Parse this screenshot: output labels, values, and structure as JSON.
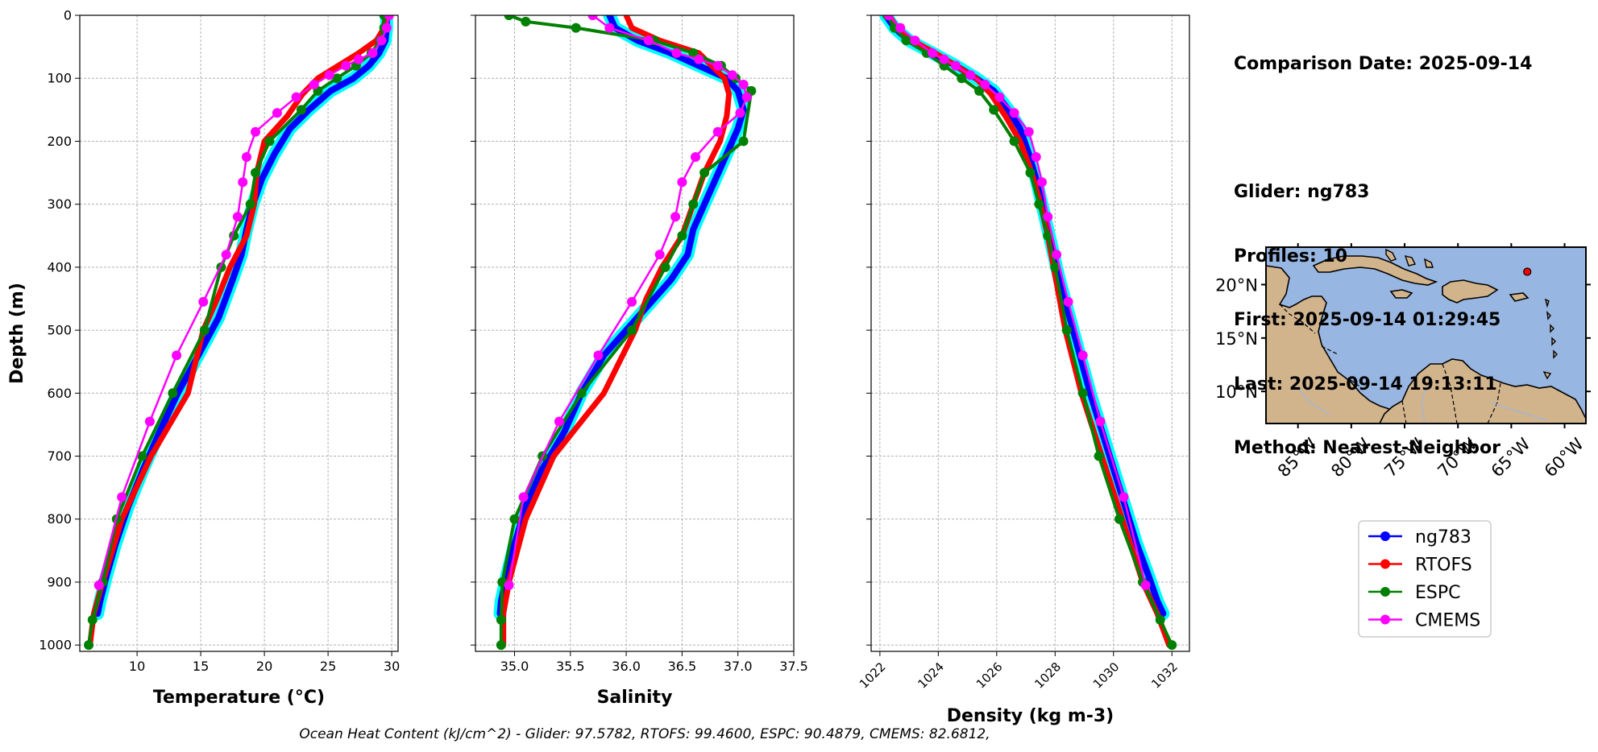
{
  "info": {
    "comparison_date": "Comparison Date: 2025-09-14",
    "glider": "Glider: ng783",
    "profiles": "Profiles: 10",
    "first": "First: 2025-09-14 01:29:45",
    "last": "Last: 2025-09-14 19:13:11",
    "method": "Method: Nearest-Neighbor"
  },
  "footer": "Ocean Heat Content (kJ/cm^2) - Glider: 97.5782,  RTOFS: 99.4600,  ESPC: 90.4879,  CMEMS: 82.6812,",
  "colors": {
    "glider": "#0000ff",
    "glider_spread": "#00ffff",
    "rtofs": "#ff0000",
    "espc": "#008000",
    "cmems": "#ff00ff",
    "ocean": "#97b6e1",
    "land": "#d2b48c"
  },
  "chart_data": [
    {
      "type": "line",
      "xlabel": "Temperature (°C)",
      "ylabel": "Depth (m)",
      "xlim": [
        5.5,
        30.5
      ],
      "ylim": [
        1010,
        0
      ],
      "xticks": [
        10,
        15,
        20,
        25,
        30
      ],
      "xtick_labels": [
        "10",
        "15",
        "20",
        "25",
        "30"
      ],
      "yticks": [
        0,
        100,
        200,
        300,
        400,
        500,
        600,
        700,
        800,
        900,
        1000
      ],
      "ytick_labels": [
        "0",
        "100",
        "200",
        "300",
        "400",
        "500",
        "600",
        "700",
        "800",
        "900",
        "1000"
      ],
      "grid": true,
      "series": [
        {
          "name": "ng783",
          "x": [
            29.6,
            29.6,
            29.5,
            29.0,
            28.2,
            27.0,
            25.2,
            23.5,
            22.0,
            20.8,
            19.8,
            19.1,
            18.6,
            18.2,
            17.5,
            16.4,
            14.8,
            13.2,
            11.8,
            10.5,
            9.3,
            8.3,
            7.6,
            7.1,
            6.9
          ],
          "y": [
            0,
            20,
            40,
            60,
            80,
            100,
            120,
            150,
            180,
            220,
            260,
            300,
            340,
            380,
            420,
            480,
            540,
            600,
            660,
            720,
            780,
            840,
            890,
            930,
            950
          ]
        },
        {
          "name": "RTOFS",
          "x": [
            29.5,
            29.4,
            28.8,
            27.4,
            24.2,
            23.0,
            21.8,
            20.0,
            19.4,
            19.2,
            18.6,
            17.3,
            16.3,
            15.2,
            14.0,
            11.1,
            8.8,
            7.3,
            6.6,
            6.3
          ],
          "y": [
            0,
            20,
            40,
            60,
            100,
            125,
            160,
            200,
            250,
            300,
            350,
            400,
            450,
            500,
            600,
            700,
            800,
            900,
            950,
            1000
          ]
        },
        {
          "name": "ESPC",
          "x": [
            29.4,
            29.4,
            29.1,
            28.4,
            27.2,
            25.7,
            24.2,
            22.9,
            20.4,
            19.3,
            18.9,
            17.6,
            16.6,
            15.3,
            12.8,
            10.4,
            8.4,
            7.3,
            6.5,
            6.2
          ],
          "y": [
            0,
            20,
            40,
            60,
            80,
            100,
            120,
            150,
            200,
            250,
            300,
            350,
            400,
            500,
            600,
            700,
            800,
            900,
            960,
            1000
          ]
        },
        {
          "name": "CMEMS",
          "x": [
            29.8,
            29.6,
            29.2,
            28.5,
            27.4,
            26.4,
            25.1,
            23.9,
            22.5,
            21.0,
            19.3,
            18.6,
            18.3,
            17.9,
            17.0,
            15.2,
            13.1,
            11.0,
            8.8,
            7.0
          ],
          "y": [
            0,
            20,
            40,
            60,
            70,
            80,
            95,
            110,
            130,
            155,
            185,
            225,
            265,
            320,
            380,
            455,
            540,
            645,
            765,
            905
          ]
        }
      ]
    },
    {
      "type": "line",
      "xlabel": "Salinity",
      "ylim": [
        1010,
        0
      ],
      "xlim": [
        34.65,
        37.5
      ],
      "xticks": [
        35.0,
        35.5,
        36.0,
        36.5,
        37.0,
        37.5
      ],
      "xtick_labels": [
        "35.0",
        "35.5",
        "36.0",
        "36.5",
        "37.0",
        "37.5"
      ],
      "grid": true,
      "series": [
        {
          "name": "ng783",
          "x": [
            35.85,
            35.9,
            36.1,
            36.4,
            36.65,
            36.9,
            37.0,
            37.05,
            37.0,
            36.9,
            36.8,
            36.7,
            36.6,
            36.55,
            36.4,
            36.1,
            35.8,
            35.6,
            35.45,
            35.25,
            35.1,
            35.0,
            34.93,
            34.88,
            34.87
          ],
          "y": [
            0,
            20,
            40,
            60,
            80,
            100,
            120,
            150,
            180,
            220,
            260,
            300,
            340,
            380,
            420,
            480,
            540,
            600,
            660,
            720,
            780,
            840,
            890,
            930,
            950
          ]
        },
        {
          "name": "RTOFS",
          "x": [
            36.0,
            36.05,
            36.3,
            36.65,
            36.88,
            36.92,
            36.9,
            36.84,
            36.7,
            36.6,
            36.5,
            36.32,
            36.18,
            36.08,
            35.8,
            35.35,
            35.1,
            34.95,
            34.9,
            34.9
          ],
          "y": [
            0,
            20,
            40,
            60,
            100,
            125,
            160,
            200,
            250,
            300,
            350,
            400,
            450,
            500,
            600,
            700,
            800,
            900,
            950,
            1000
          ]
        },
        {
          "name": "ESPC",
          "x": [
            34.95,
            35.1,
            35.55,
            36.25,
            36.6,
            36.85,
            36.98,
            37.12,
            37.05,
            36.7,
            36.6,
            36.5,
            36.35,
            36.05,
            35.6,
            35.25,
            35.0,
            34.89,
            34.88,
            34.88
          ],
          "y": [
            0,
            10,
            20,
            40,
            60,
            80,
            100,
            120,
            200,
            250,
            300,
            350,
            400,
            500,
            600,
            700,
            800,
            900,
            960,
            1000
          ]
        },
        {
          "name": "CMEMS",
          "x": [
            35.7,
            35.85,
            36.2,
            36.45,
            36.65,
            36.82,
            36.95,
            37.05,
            37.08,
            37.02,
            36.82,
            36.62,
            36.5,
            36.44,
            36.3,
            36.05,
            35.75,
            35.4,
            35.08,
            34.95
          ],
          "y": [
            0,
            20,
            40,
            60,
            70,
            80,
            95,
            110,
            130,
            155,
            185,
            225,
            265,
            320,
            380,
            455,
            540,
            645,
            765,
            905
          ]
        }
      ]
    },
    {
      "type": "line",
      "xlabel": "Density (kg m-3)",
      "ylim": [
        1010,
        0
      ],
      "xlim": [
        1021.7,
        1032.6
      ],
      "xticks": [
        1022,
        1024,
        1026,
        1028,
        1030,
        1032
      ],
      "xtick_labels": [
        "1022",
        "1024",
        "1026",
        "1028",
        "1030",
        "1032"
      ],
      "grid": true,
      "series": [
        {
          "name": "ng783",
          "x": [
            1022.2,
            1022.5,
            1023.0,
            1023.8,
            1024.6,
            1025.3,
            1025.9,
            1026.4,
            1026.8,
            1027.1,
            1027.35,
            1027.55,
            1027.75,
            1027.95,
            1028.15,
            1028.5,
            1028.85,
            1029.2,
            1029.6,
            1030.0,
            1030.4,
            1030.8,
            1031.2,
            1031.5,
            1031.7
          ],
          "y": [
            0,
            20,
            40,
            60,
            80,
            100,
            120,
            150,
            180,
            220,
            260,
            300,
            340,
            380,
            420,
            480,
            540,
            600,
            660,
            720,
            780,
            840,
            890,
            930,
            950
          ]
        },
        {
          "name": "RTOFS",
          "x": [
            1022.3,
            1022.6,
            1023.1,
            1023.9,
            1025.3,
            1025.8,
            1026.3,
            1026.8,
            1027.2,
            1027.5,
            1027.75,
            1027.95,
            1028.15,
            1028.35,
            1028.9,
            1029.6,
            1030.3,
            1031.0,
            1031.5,
            1031.9
          ],
          "y": [
            0,
            20,
            40,
            60,
            100,
            125,
            160,
            200,
            250,
            300,
            350,
            400,
            450,
            500,
            600,
            700,
            800,
            900,
            950,
            1000
          ]
        },
        {
          "name": "ESPC",
          "x": [
            1022.25,
            1022.5,
            1022.9,
            1023.6,
            1024.2,
            1024.8,
            1025.4,
            1025.9,
            1026.6,
            1027.15,
            1027.45,
            1027.75,
            1028.0,
            1028.4,
            1028.95,
            1029.5,
            1030.2,
            1031.0,
            1031.6,
            1032.0
          ],
          "y": [
            0,
            20,
            40,
            60,
            80,
            100,
            120,
            150,
            200,
            250,
            300,
            350,
            400,
            500,
            600,
            700,
            800,
            900,
            960,
            1000
          ]
        },
        {
          "name": "CMEMS",
          "x": [
            1022.3,
            1022.7,
            1023.2,
            1023.8,
            1024.2,
            1024.6,
            1025.1,
            1025.6,
            1026.1,
            1026.6,
            1027.1,
            1027.35,
            1027.55,
            1027.75,
            1028.05,
            1028.45,
            1028.95,
            1029.55,
            1030.35,
            1031.1
          ],
          "y": [
            0,
            20,
            40,
            60,
            70,
            80,
            95,
            110,
            130,
            155,
            185,
            225,
            265,
            320,
            380,
            455,
            540,
            645,
            765,
            905
          ]
        }
      ]
    }
  ],
  "map": {
    "xticks": [
      -85,
      -80,
      -75,
      -70,
      -65,
      -60
    ],
    "xtick_labels": [
      "85°W",
      "80°W",
      "75°W",
      "70°W",
      "65°W",
      "60°W"
    ],
    "yticks": [
      20,
      15,
      10
    ],
    "ytick_labels": [
      "20°N",
      "15°N",
      "10°N"
    ],
    "lon_range": [
      -88,
      -58
    ],
    "lat_range": [
      7,
      23.5
    ],
    "marker": {
      "lon": -63.5,
      "lat": 21.2
    }
  },
  "legend": {
    "placement": "right",
    "entries": [
      "ng783",
      "RTOFS",
      "ESPC",
      "CMEMS"
    ]
  }
}
